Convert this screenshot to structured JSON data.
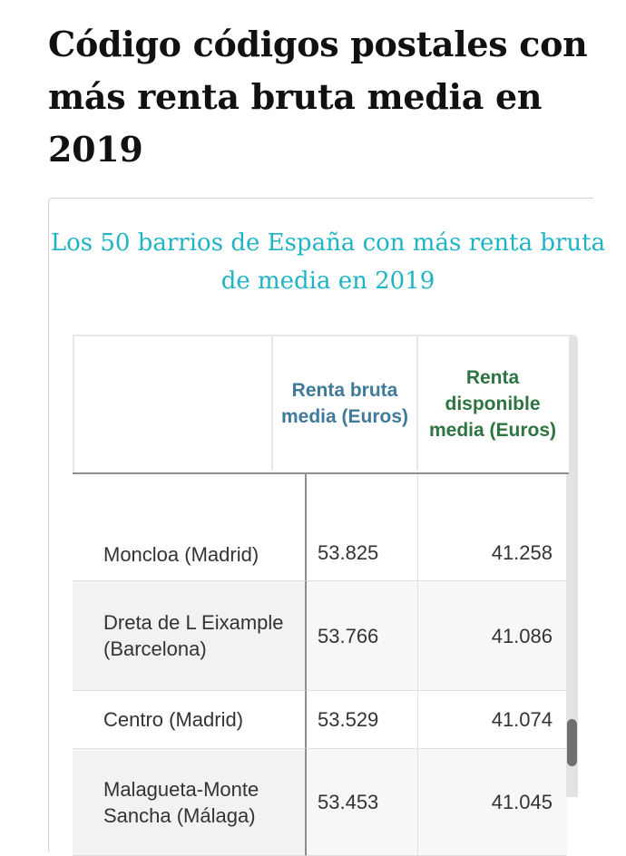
{
  "article": {
    "title": "Código códigos postales con más renta bruta media en 2019"
  },
  "chart": {
    "title": "Los 50 barrios de España con más renta bruta de media en 2019",
    "title_color": "#1fb3c4"
  },
  "table": {
    "headers": {
      "name": "",
      "bruta": "Renta bruta media (Euros)",
      "disponible": "Renta disponible media (Euros)"
    },
    "header_colors": {
      "bruta": "#3f7a9a",
      "disponible": "#2e7440"
    },
    "rows": [
      {
        "name": "Moncloa (Madrid)",
        "bruta": "53.825",
        "disponible": "41.258"
      },
      {
        "name": "Dreta de L Eixample (Barcelona)",
        "bruta": "53.766",
        "disponible": "41.086"
      },
      {
        "name": "Centro (Madrid)",
        "bruta": "53.529",
        "disponible": "41.074"
      },
      {
        "name": "Malagueta-Monte Sancha (Málaga)",
        "bruta": "53.453",
        "disponible": "41.045"
      }
    ]
  }
}
